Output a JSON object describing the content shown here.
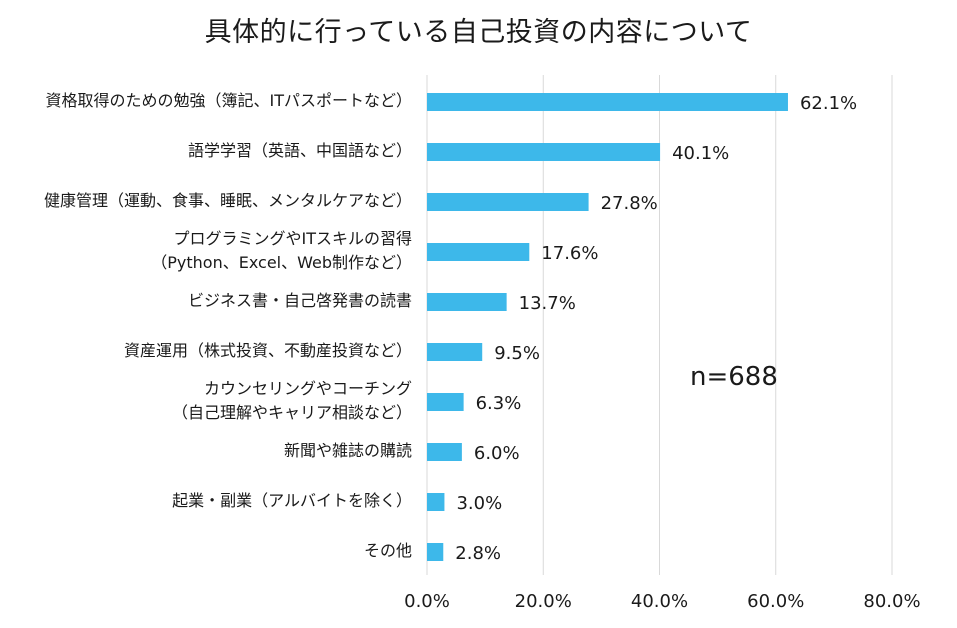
{
  "title": "具体的に行っている自己投資の内容について",
  "sample_note": "n=688",
  "chart_data": {
    "type": "bar",
    "orientation": "horizontal",
    "title": "具体的に行っている自己投資の内容について",
    "categories": [
      [
        "資格取得のための勉強（簿記、ITパスポートなど）"
      ],
      [
        "語学学習（英語、中国語など）"
      ],
      [
        "健康管理（運動、食事、睡眠、メンタルケアなど）"
      ],
      [
        "プログラミングやITスキルの習得",
        "（Python、Excel、Web制作など）"
      ],
      [
        "ビジネス書・自己啓発書の読書"
      ],
      [
        "資産運用（株式投資、不動産投資など）"
      ],
      [
        "カウンセリングやコーチング",
        "（自己理解やキャリア相談など）"
      ],
      [
        "新聞や雑誌の購読"
      ],
      [
        "起業・副業（アルバイトを除く）"
      ],
      [
        "その他"
      ]
    ],
    "values": [
      62.1,
      40.1,
      27.8,
      17.6,
      13.7,
      9.5,
      6.3,
      6.0,
      3.0,
      2.8
    ],
    "value_labels": [
      "62.1%",
      "40.1%",
      "27.8%",
      "17.6%",
      "13.7%",
      "9.5%",
      "6.3%",
      "6.0%",
      "3.0%",
      "2.8%"
    ],
    "xlim": [
      0,
      80
    ],
    "xticks": [
      0,
      20,
      40,
      60,
      80
    ],
    "xtick_labels": [
      "0.0%",
      "20.0%",
      "40.0%",
      "60.0%",
      "80.0%"
    ],
    "grid": true,
    "bar_color": "#3DB8EA",
    "grid_color": "#d9d9d9"
  }
}
